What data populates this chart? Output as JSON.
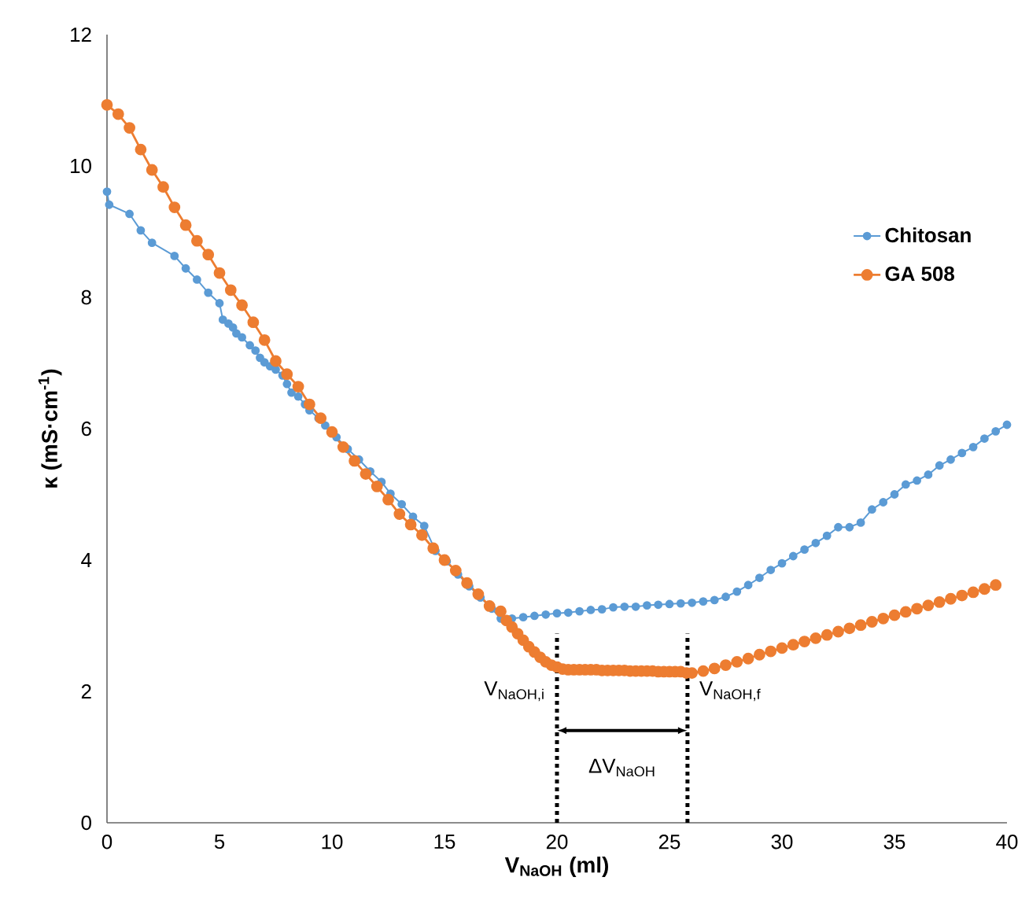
{
  "chart_data": {
    "type": "line",
    "xlabel": "V$_{NaOH}$ (ml)",
    "ylabel": "κ (mS·cm$^{-1}$)",
    "xlim": [
      0,
      40
    ],
    "ylim": [
      0,
      12
    ],
    "xticks": [
      0,
      5,
      10,
      15,
      20,
      25,
      30,
      35,
      40
    ],
    "yticks": [
      0,
      2,
      4,
      6,
      8,
      10,
      12
    ],
    "grid": false,
    "legend": "right",
    "marker": "circle",
    "line_style": "solid",
    "series": [
      {
        "name": "Chitosan",
        "color": "#5b9bd5",
        "x": [
          0,
          0.1,
          1.0,
          1.5,
          2.0,
          3.0,
          3.5,
          4.0,
          4.5,
          5.0,
          5.15,
          5.4,
          5.6,
          5.75,
          6.0,
          6.35,
          6.6,
          6.8,
          7.0,
          7.25,
          7.5,
          7.8,
          8.0,
          8.2,
          8.5,
          8.8,
          9.0,
          9.4,
          9.7,
          10.2,
          10.7,
          11.2,
          11.7,
          12.2,
          12.6,
          13.1,
          13.6,
          14.1,
          14.6,
          15.1,
          15.6,
          16.1,
          16.6,
          17.1,
          17.5,
          18.0,
          18.5,
          19.0,
          19.5,
          20.0,
          20.5,
          21.0,
          21.5,
          22.0,
          22.5,
          23.0,
          23.5,
          24.0,
          24.5,
          25.0,
          25.5,
          26.0,
          26.5,
          27.0,
          27.5,
          28.0,
          28.5,
          29.0,
          29.5,
          30.0,
          30.5,
          31.0,
          31.5,
          32.0,
          32.5,
          33.0,
          33.5,
          34.0,
          34.5,
          35.0,
          35.5,
          36.0,
          36.5,
          37.0,
          37.5,
          38.0,
          38.5,
          39.0,
          39.5,
          40.0
        ],
        "values": [
          9.61,
          9.41,
          9.27,
          9.02,
          8.83,
          8.63,
          8.44,
          8.27,
          8.07,
          7.91,
          7.66,
          7.6,
          7.54,
          7.45,
          7.39,
          7.27,
          7.19,
          7.08,
          7.01,
          6.95,
          6.9,
          6.81,
          6.68,
          6.55,
          6.49,
          6.37,
          6.28,
          6.16,
          6.05,
          5.87,
          5.69,
          5.53,
          5.35,
          5.19,
          5.01,
          4.85,
          4.66,
          4.52,
          4.14,
          3.98,
          3.78,
          3.6,
          3.43,
          3.26,
          3.11,
          3.11,
          3.13,
          3.15,
          3.17,
          3.19,
          3.2,
          3.22,
          3.24,
          3.25,
          3.28,
          3.29,
          3.29,
          3.31,
          3.32,
          3.33,
          3.34,
          3.35,
          3.37,
          3.39,
          3.44,
          3.52,
          3.62,
          3.73,
          3.85,
          3.95,
          4.06,
          4.16,
          4.26,
          4.37,
          4.5,
          4.5,
          4.57,
          4.77,
          4.88,
          5.0,
          5.15,
          5.21,
          5.3,
          5.44,
          5.53,
          5.63,
          5.72,
          5.85,
          5.96,
          6.06
        ]
      },
      {
        "name": "GA 508",
        "color": "#ed7d31",
        "x": [
          0,
          0.5,
          1,
          1.5,
          2,
          2.5,
          3,
          3.5,
          4,
          4.5,
          5,
          5.5,
          6,
          6.5,
          7,
          7.5,
          8,
          8.5,
          9,
          9.5,
          10,
          10.5,
          11,
          11.5,
          12,
          12.5,
          13,
          13.5,
          14,
          14.5,
          15,
          15.5,
          16,
          16.5,
          17,
          17.5,
          17.75,
          18,
          18.25,
          18.5,
          18.75,
          19,
          19.25,
          19.5,
          19.75,
          20,
          20.25,
          20.5,
          20.75,
          21,
          21.25,
          21.5,
          21.75,
          22,
          22.25,
          22.5,
          22.75,
          23,
          23.25,
          23.5,
          23.75,
          24,
          24.25,
          24.5,
          24.75,
          25,
          25.25,
          25.5,
          25.75,
          26,
          26.5,
          27,
          27.5,
          28,
          28.5,
          29,
          29.5,
          30,
          30.5,
          31,
          31.5,
          32,
          32.5,
          33,
          33.5,
          34,
          34.5,
          35,
          35.5,
          36,
          36.5,
          37,
          37.5,
          38,
          38.5,
          39,
          39.5
        ],
        "values": [
          10.93,
          10.79,
          10.58,
          10.25,
          9.94,
          9.68,
          9.37,
          9.1,
          8.86,
          8.65,
          8.37,
          8.11,
          7.88,
          7.62,
          7.35,
          7.03,
          6.83,
          6.64,
          6.37,
          6.16,
          5.95,
          5.72,
          5.51,
          5.31,
          5.12,
          4.92,
          4.7,
          4.54,
          4.38,
          4.18,
          4.0,
          3.84,
          3.65,
          3.48,
          3.3,
          3.22,
          3.08,
          2.98,
          2.88,
          2.78,
          2.68,
          2.6,
          2.52,
          2.45,
          2.4,
          2.37,
          2.34,
          2.33,
          2.33,
          2.33,
          2.33,
          2.33,
          2.33,
          2.32,
          2.32,
          2.32,
          2.32,
          2.32,
          2.31,
          2.31,
          2.31,
          2.31,
          2.31,
          2.3,
          2.3,
          2.3,
          2.3,
          2.3,
          2.28,
          2.28,
          2.31,
          2.35,
          2.4,
          2.45,
          2.5,
          2.56,
          2.61,
          2.66,
          2.71,
          2.76,
          2.81,
          2.86,
          2.91,
          2.96,
          3.01,
          3.06,
          3.11,
          3.16,
          3.21,
          3.26,
          3.31,
          3.36,
          3.41,
          3.46,
          3.51,
          3.56,
          3.62
        ]
      }
    ],
    "ref_lines": [
      {
        "axis": "x",
        "value": 20,
        "color": "#000000",
        "line_style": "dotted"
      },
      {
        "axis": "x",
        "value": 25.8,
        "color": "#000000",
        "line_style": "dotted"
      }
    ],
    "annotations": [
      "V$_{NaOH,i}$",
      "V$_{NaOH,f}$",
      "ΔV$_{NaOH}$"
    ]
  }
}
